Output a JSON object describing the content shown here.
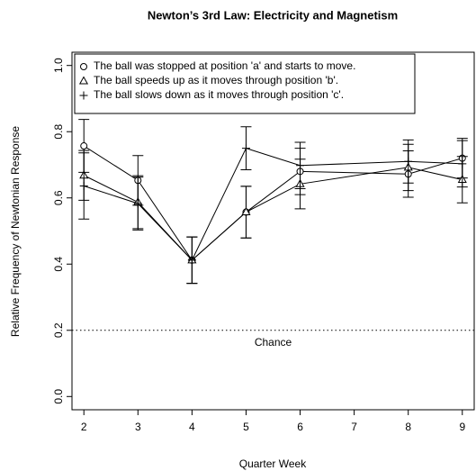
{
  "chart_data": {
    "type": "line",
    "title": "Newton’s 3rd Law: Electricity and Magnetism",
    "x_label": "Quarter Week",
    "y_label": "Relative Frequency of Newtonian Response",
    "x": [
      2,
      3,
      4,
      5,
      6,
      8,
      9
    ],
    "series": [
      {
        "name": "The ball was stopped at position 'a' and starts to move.",
        "color": "#000000",
        "marker": "circle",
        "values": [
          0.757,
          0.653,
          0.412,
          0.557,
          0.68,
          0.672,
          0.72
        ],
        "errors": [
          0.08,
          0.075,
          0.07,
          0.078,
          0.07,
          0.07,
          0.06
        ]
      },
      {
        "name": "The ball speeds up as it moves through position 'b'.",
        "color": "#000000",
        "marker": "triangle",
        "values": [
          0.668,
          0.587,
          0.412,
          0.557,
          0.642,
          0.692,
          0.655
        ],
        "errors": [
          0.075,
          0.08,
          0.07,
          0.078,
          0.075,
          0.07,
          0.07
        ]
      },
      {
        "name": "The ball slows down as it moves through position 'c'.",
        "color": "#000000",
        "marker": "plus",
        "values": [
          0.636,
          0.583,
          0.412,
          0.75,
          0.698,
          0.71,
          0.703
        ],
        "errors": [
          0.1,
          0.08,
          0.07,
          0.065,
          0.07,
          0.065,
          0.07
        ]
      }
    ],
    "reference_line": {
      "y": 0.2,
      "label": "Chance"
    },
    "xlim": [
      1.78,
      9.22
    ],
    "ylim": [
      -0.04,
      1.04
    ],
    "xticks": [
      2,
      3,
      4,
      5,
      6,
      7,
      8,
      9
    ],
    "yticks": [
      {
        "value": 0,
        "label": "0.0"
      },
      0.2,
      0.4,
      0.6,
      0.8,
      {
        "value": 1,
        "label": "1.0"
      }
    ],
    "legend": "top-left"
  }
}
